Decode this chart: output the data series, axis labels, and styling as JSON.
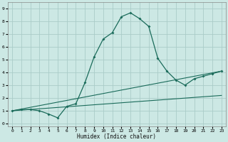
{
  "xlabel": "Humidex (Indice chaleur)",
  "background_color": "#cce8e4",
  "line_color": "#1a6b5a",
  "grid_color": "#aaccc8",
  "xlim": [
    -0.5,
    23.5
  ],
  "ylim": [
    -0.2,
    9.5
  ],
  "xticks": [
    0,
    1,
    2,
    3,
    4,
    5,
    6,
    7,
    8,
    9,
    10,
    11,
    12,
    13,
    14,
    15,
    16,
    17,
    18,
    19,
    20,
    21,
    22,
    23
  ],
  "yticks": [
    0,
    1,
    2,
    3,
    4,
    5,
    6,
    7,
    8,
    9
  ],
  "curve1_x": [
    0,
    1,
    2,
    3,
    4,
    5,
    6,
    7,
    8,
    9,
    10,
    11,
    12,
    13,
    14,
    15,
    16,
    17,
    18,
    19,
    20,
    21,
    22,
    23
  ],
  "curve1_y": [
    1.0,
    1.1,
    1.1,
    1.0,
    0.75,
    0.45,
    1.35,
    1.55,
    3.2,
    5.2,
    6.6,
    7.1,
    8.35,
    8.65,
    8.2,
    7.6,
    5.1,
    4.1,
    3.4,
    3.0,
    3.5,
    3.7,
    3.9,
    4.1
  ],
  "curve2_x": [
    0,
    23
  ],
  "curve2_y": [
    1.0,
    2.2
  ],
  "curve3_x": [
    0,
    23
  ],
  "curve3_y": [
    1.0,
    4.1
  ]
}
